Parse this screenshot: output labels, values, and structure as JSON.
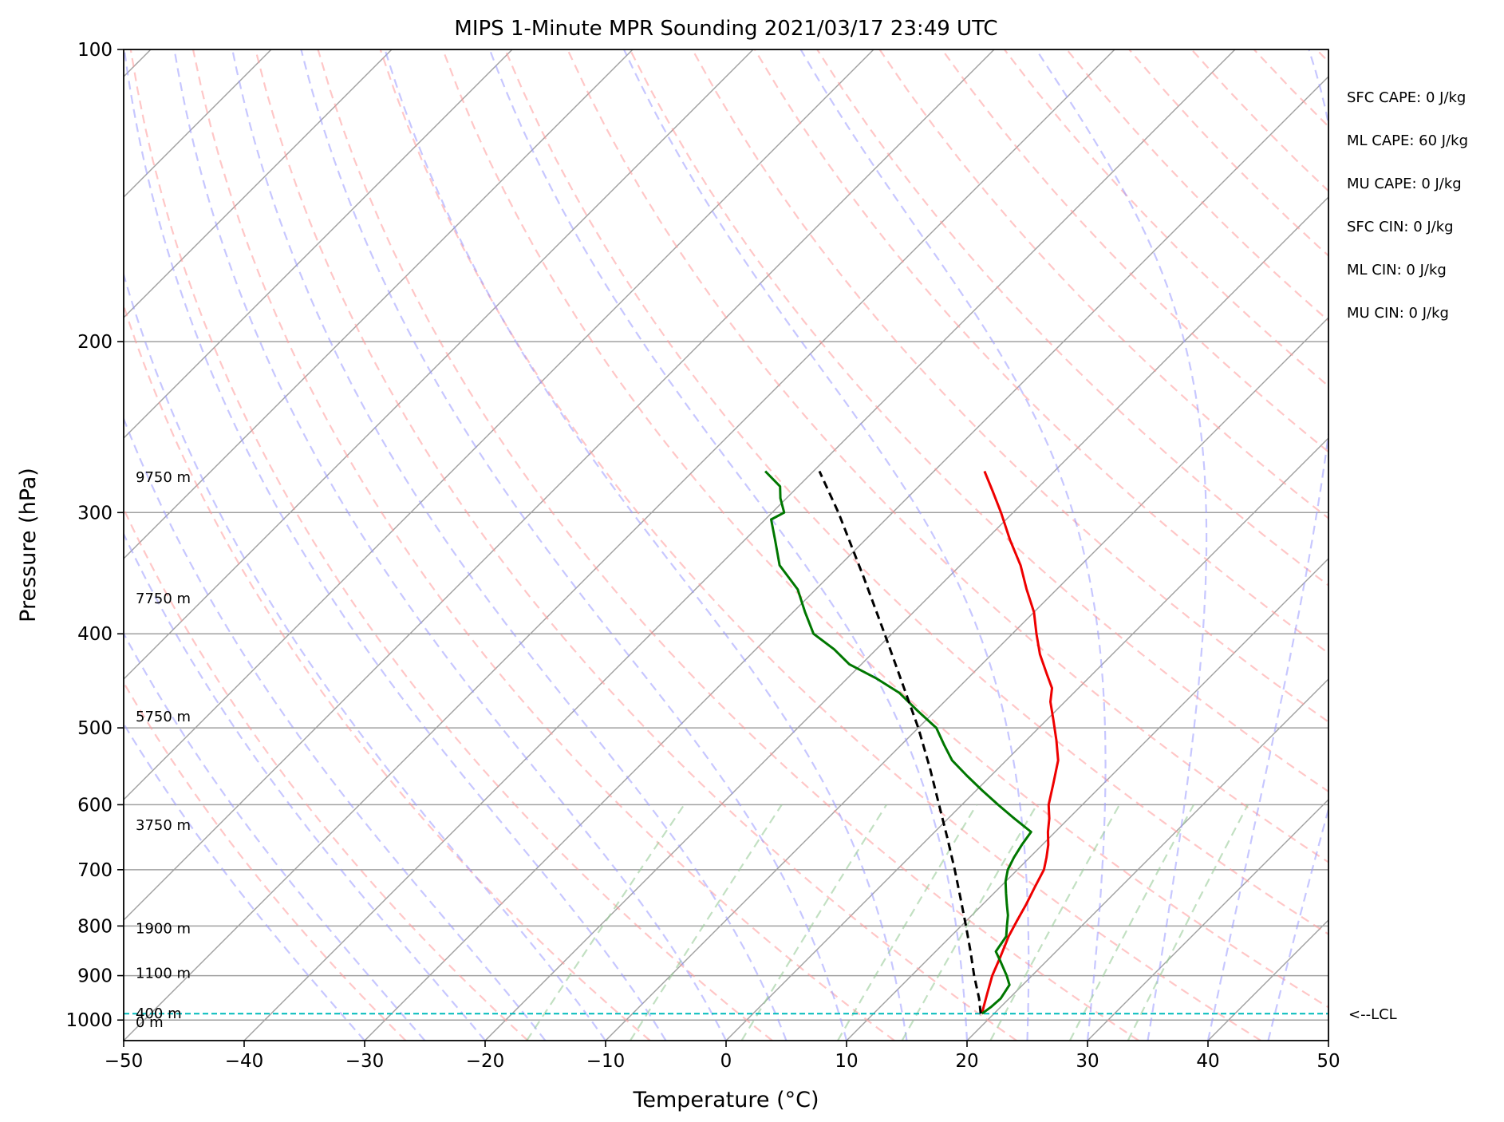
{
  "chart_data": {
    "type": "line",
    "subtype": "skew-t log-p sounding",
    "title": "MIPS 1-Minute MPR Sounding 2021/03/17 23:49 UTC",
    "xlabel": "Temperature (°C)",
    "ylabel": "Pressure (hPa)",
    "xlim": [
      -50,
      50
    ],
    "ylim": [
      1050,
      100
    ],
    "y_scale": "log",
    "skew_degrees": 45,
    "grid": true,
    "x_ticks": [
      -50,
      -40,
      -30,
      -20,
      -10,
      0,
      10,
      20,
      30,
      40,
      50
    ],
    "x_tick_labels": [
      "−50",
      "−40",
      "−30",
      "−20",
      "−10",
      "0",
      "10",
      "20",
      "30",
      "40",
      "50"
    ],
    "y_ticks": [
      100,
      200,
      300,
      400,
      500,
      600,
      700,
      800,
      900,
      1000
    ],
    "y_tick_labels": [
      "100",
      "200",
      "300",
      "400",
      "500",
      "600",
      "700",
      "800",
      "900",
      "1000"
    ],
    "background_lines": {
      "isotherms": {
        "color": "#a0a0a0",
        "style": "solid"
      },
      "dry_adiabats": {
        "color": "#ff9999",
        "style": "dashed"
      },
      "moist_adiabats": {
        "color": "#9999ff",
        "style": "dashed"
      },
      "mixing_ratio": {
        "color": "#99cc99",
        "style": "dashed"
      }
    },
    "series": [
      {
        "role": "temperature",
        "color": "#ee0000",
        "points": [
          {
            "p": 985,
            "t": 19.0
          },
          {
            "p": 970,
            "t": 18.6
          },
          {
            "p": 940,
            "t": 17.8
          },
          {
            "p": 900,
            "t": 16.7
          },
          {
            "p": 860,
            "t": 15.8
          },
          {
            "p": 820,
            "t": 14.8
          },
          {
            "p": 790,
            "t": 14.2
          },
          {
            "p": 760,
            "t": 13.6
          },
          {
            "p": 730,
            "t": 12.9
          },
          {
            "p": 700,
            "t": 12.2
          },
          {
            "p": 680,
            "t": 11.4
          },
          {
            "p": 660,
            "t": 10.5
          },
          {
            "p": 640,
            "t": 9.4
          },
          {
            "p": 620,
            "t": 8.4
          },
          {
            "p": 600,
            "t": 7.2
          },
          {
            "p": 570,
            "t": 5.8
          },
          {
            "p": 540,
            "t": 4.3
          },
          {
            "p": 515,
            "t": 2.5
          },
          {
            "p": 490,
            "t": 0.5
          },
          {
            "p": 470,
            "t": -1.2
          },
          {
            "p": 455,
            "t": -2.2
          },
          {
            "p": 440,
            "t": -3.8
          },
          {
            "p": 420,
            "t": -6.0
          },
          {
            "p": 400,
            "t": -8.0
          },
          {
            "p": 380,
            "t": -10.0
          },
          {
            "p": 360,
            "t": -12.5
          },
          {
            "p": 340,
            "t": -15.0
          },
          {
            "p": 320,
            "t": -18.0
          },
          {
            "p": 300,
            "t": -21.0
          },
          {
            "p": 285,
            "t": -23.5
          },
          {
            "p": 272,
            "t": -25.8
          }
        ]
      },
      {
        "role": "dewpoint",
        "color": "#007700",
        "points": [
          {
            "p": 985,
            "t": 19.0
          },
          {
            "p": 970,
            "t": 19.2
          },
          {
            "p": 950,
            "t": 19.3
          },
          {
            "p": 920,
            "t": 18.9
          },
          {
            "p": 900,
            "t": 17.9
          },
          {
            "p": 870,
            "t": 16.2
          },
          {
            "p": 850,
            "t": 15.0
          },
          {
            "p": 820,
            "t": 14.6
          },
          {
            "p": 800,
            "t": 13.8
          },
          {
            "p": 780,
            "t": 13.0
          },
          {
            "p": 760,
            "t": 12.0
          },
          {
            "p": 740,
            "t": 11.0
          },
          {
            "p": 720,
            "t": 10.0
          },
          {
            "p": 700,
            "t": 9.2
          },
          {
            "p": 680,
            "t": 8.7
          },
          {
            "p": 660,
            "t": 8.3
          },
          {
            "p": 640,
            "t": 8.0
          },
          {
            "p": 620,
            "t": 5.5
          },
          {
            "p": 600,
            "t": 3.0
          },
          {
            "p": 580,
            "t": 0.5
          },
          {
            "p": 560,
            "t": -2.0
          },
          {
            "p": 540,
            "t": -4.5
          },
          {
            "p": 520,
            "t": -6.5
          },
          {
            "p": 500,
            "t": -8.5
          },
          {
            "p": 480,
            "t": -11.5
          },
          {
            "p": 460,
            "t": -14.5
          },
          {
            "p": 445,
            "t": -17.5
          },
          {
            "p": 430,
            "t": -21.0
          },
          {
            "p": 415,
            "t": -23.5
          },
          {
            "p": 400,
            "t": -26.5
          },
          {
            "p": 380,
            "t": -29.0
          },
          {
            "p": 360,
            "t": -31.5
          },
          {
            "p": 340,
            "t": -35.0
          },
          {
            "p": 320,
            "t": -37.5
          },
          {
            "p": 305,
            "t": -39.5
          },
          {
            "p": 300,
            "t": -39.0
          },
          {
            "p": 290,
            "t": -40.5
          },
          {
            "p": 282,
            "t": -41.5
          },
          {
            "p": 272,
            "t": -44.0
          }
        ]
      },
      {
        "role": "parcel",
        "color": "#000000",
        "style": "dashed",
        "points": [
          {
            "p": 985,
            "t": 18.9
          },
          {
            "p": 950,
            "t": 17.5
          },
          {
            "p": 900,
            "t": 15.2
          },
          {
            "p": 850,
            "t": 12.9
          },
          {
            "p": 800,
            "t": 10.4
          },
          {
            "p": 750,
            "t": 7.7
          },
          {
            "p": 700,
            "t": 4.8
          },
          {
            "p": 650,
            "t": 1.6
          },
          {
            "p": 600,
            "t": -1.9
          },
          {
            "p": 550,
            "t": -5.7
          },
          {
            "p": 500,
            "t": -10.0
          },
          {
            "p": 450,
            "t": -15.0
          },
          {
            "p": 400,
            "t": -20.6
          },
          {
            "p": 350,
            "t": -27.0
          },
          {
            "p": 300,
            "t": -34.5
          },
          {
            "p": 272,
            "t": -39.5
          }
        ]
      }
    ],
    "lcl": {
      "p": 985,
      "label": "<--LCL",
      "color": "#00bbbb"
    },
    "height_labels": [
      {
        "p": 1005,
        "label": "0 m"
      },
      {
        "p": 985,
        "label": "400 m"
      },
      {
        "p": 895,
        "label": "1100 m"
      },
      {
        "p": 805,
        "label": "1900 m"
      },
      {
        "p": 630,
        "label": "3750 m"
      },
      {
        "p": 487,
        "label": "5750 m"
      },
      {
        "p": 368,
        "label": "7750 m"
      },
      {
        "p": 276,
        "label": "9750 m"
      }
    ],
    "indices": [
      "SFC CAPE: 0 J/kg",
      "ML CAPE: 60 J/kg",
      "MU CAPE: 0 J/kg",
      "SFC CIN: 0 J/kg",
      "ML CIN: 0 J/kg",
      "MU CIN: 0 J/kg"
    ]
  }
}
